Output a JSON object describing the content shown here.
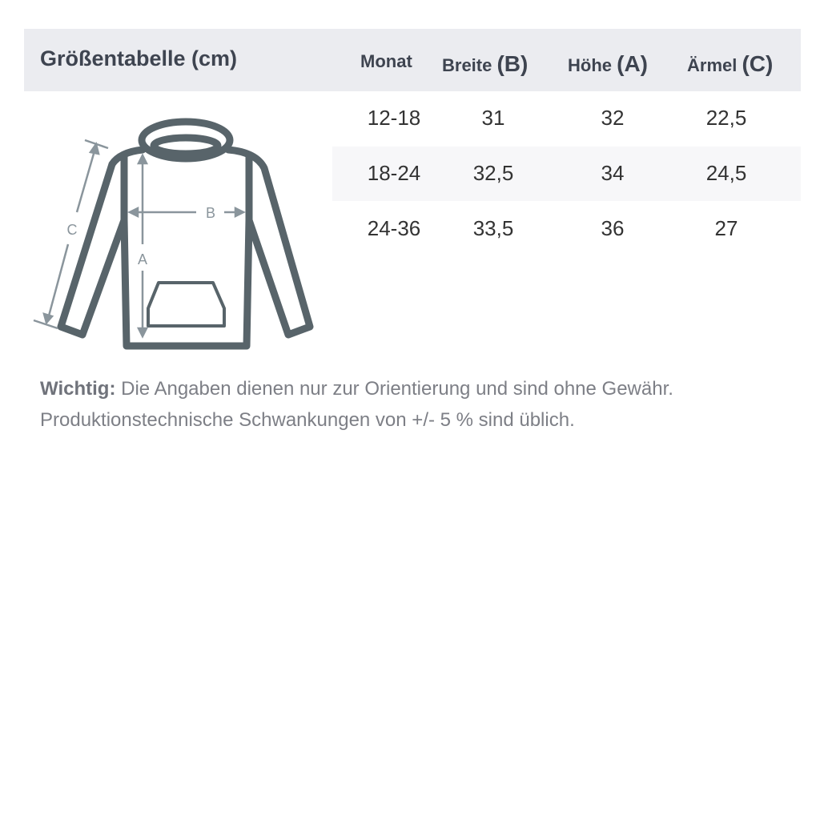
{
  "title": "Größentabelle (cm)",
  "columns": [
    {
      "label": "Monat",
      "letter": ""
    },
    {
      "label": "Breite ",
      "letter": "(B)"
    },
    {
      "label": "Höhe ",
      "letter": "(A)"
    },
    {
      "label": "Ärmel ",
      "letter": "(C)"
    }
  ],
  "rows": [
    [
      "12-18",
      "31",
      "32",
      "22,5"
    ],
    [
      "18-24",
      "32,5",
      "34",
      "24,5"
    ],
    [
      "24-36",
      "33,5",
      "36",
      "27"
    ]
  ],
  "diagram": {
    "label_a": "A",
    "label_b": "B",
    "label_c": "C"
  },
  "note": {
    "bold": "Wichtig:",
    "text": " Die Angaben dienen nur zur Orientierung und sind ohne Gewähr.",
    "line2": "Produktionstechnische Schwankungen von +/- 5 % sind üblich."
  },
  "colors": {
    "header_bg": "#ebecf0",
    "hoodie": "#58646a",
    "arrows": "#8a959c"
  }
}
